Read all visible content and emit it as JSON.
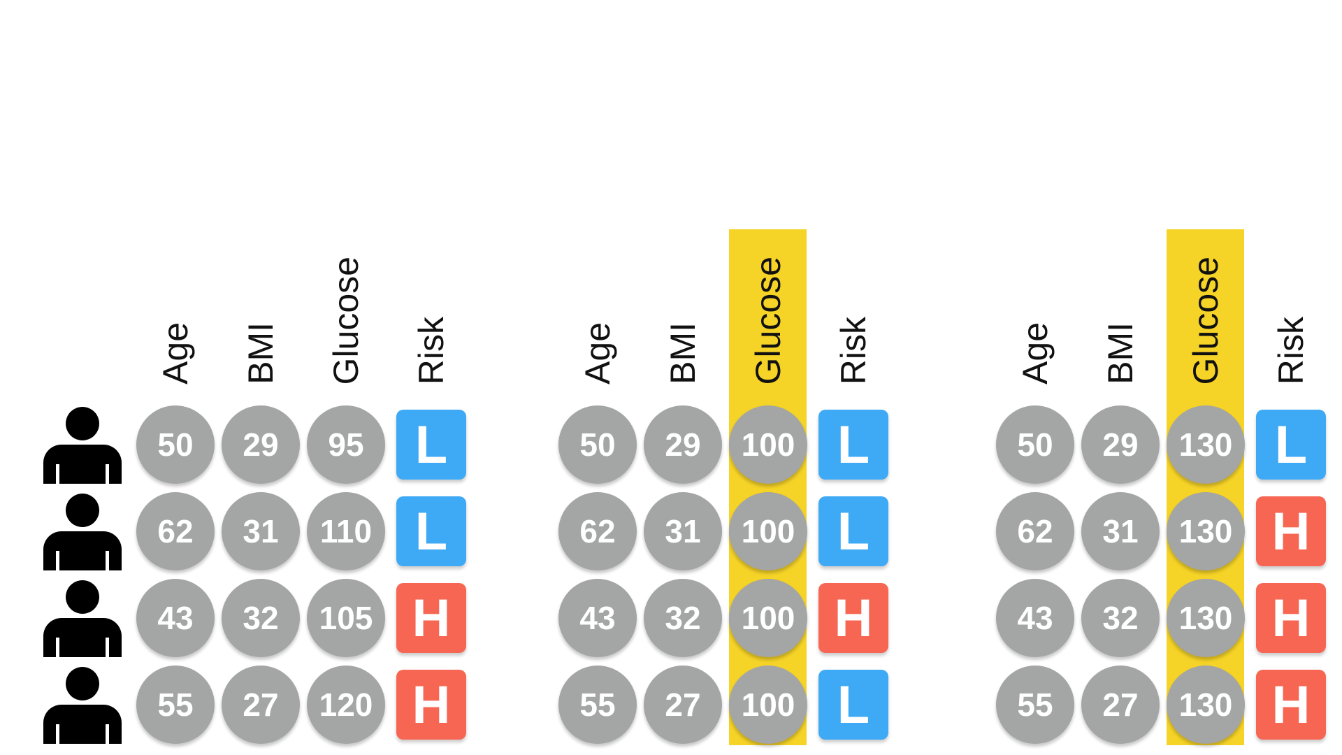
{
  "columns": [
    "Age",
    "BMI",
    "Glucose",
    "Risk"
  ],
  "people": [
    "person",
    "person",
    "person",
    "person"
  ],
  "panels": [
    {
      "highlight_column": null,
      "rows": [
        {
          "age": "50",
          "bmi": "29",
          "glucose": "95",
          "risk": "L"
        },
        {
          "age": "62",
          "bmi": "31",
          "glucose": "110",
          "risk": "L"
        },
        {
          "age": "43",
          "bmi": "32",
          "glucose": "105",
          "risk": "H"
        },
        {
          "age": "55",
          "bmi": "27",
          "glucose": "120",
          "risk": "H"
        }
      ]
    },
    {
      "highlight_column": "Glucose",
      "rows": [
        {
          "age": "50",
          "bmi": "29",
          "glucose": "100",
          "risk": "L"
        },
        {
          "age": "62",
          "bmi": "31",
          "glucose": "100",
          "risk": "L"
        },
        {
          "age": "43",
          "bmi": "32",
          "glucose": "100",
          "risk": "H"
        },
        {
          "age": "55",
          "bmi": "27",
          "glucose": "100",
          "risk": "L"
        }
      ]
    },
    {
      "highlight_column": "Glucose",
      "rows": [
        {
          "age": "50",
          "bmi": "29",
          "glucose": "130",
          "risk": "L"
        },
        {
          "age": "62",
          "bmi": "31",
          "glucose": "130",
          "risk": "H"
        },
        {
          "age": "43",
          "bmi": "32",
          "glucose": "130",
          "risk": "H"
        },
        {
          "age": "55",
          "bmi": "27",
          "glucose": "130",
          "risk": "H"
        }
      ]
    }
  ],
  "colors": {
    "highlight": "#f5d327",
    "circle": "#a4a5a5",
    "risk_low": "#3ea9f5",
    "risk_high": "#f76653",
    "person": "#000000"
  }
}
